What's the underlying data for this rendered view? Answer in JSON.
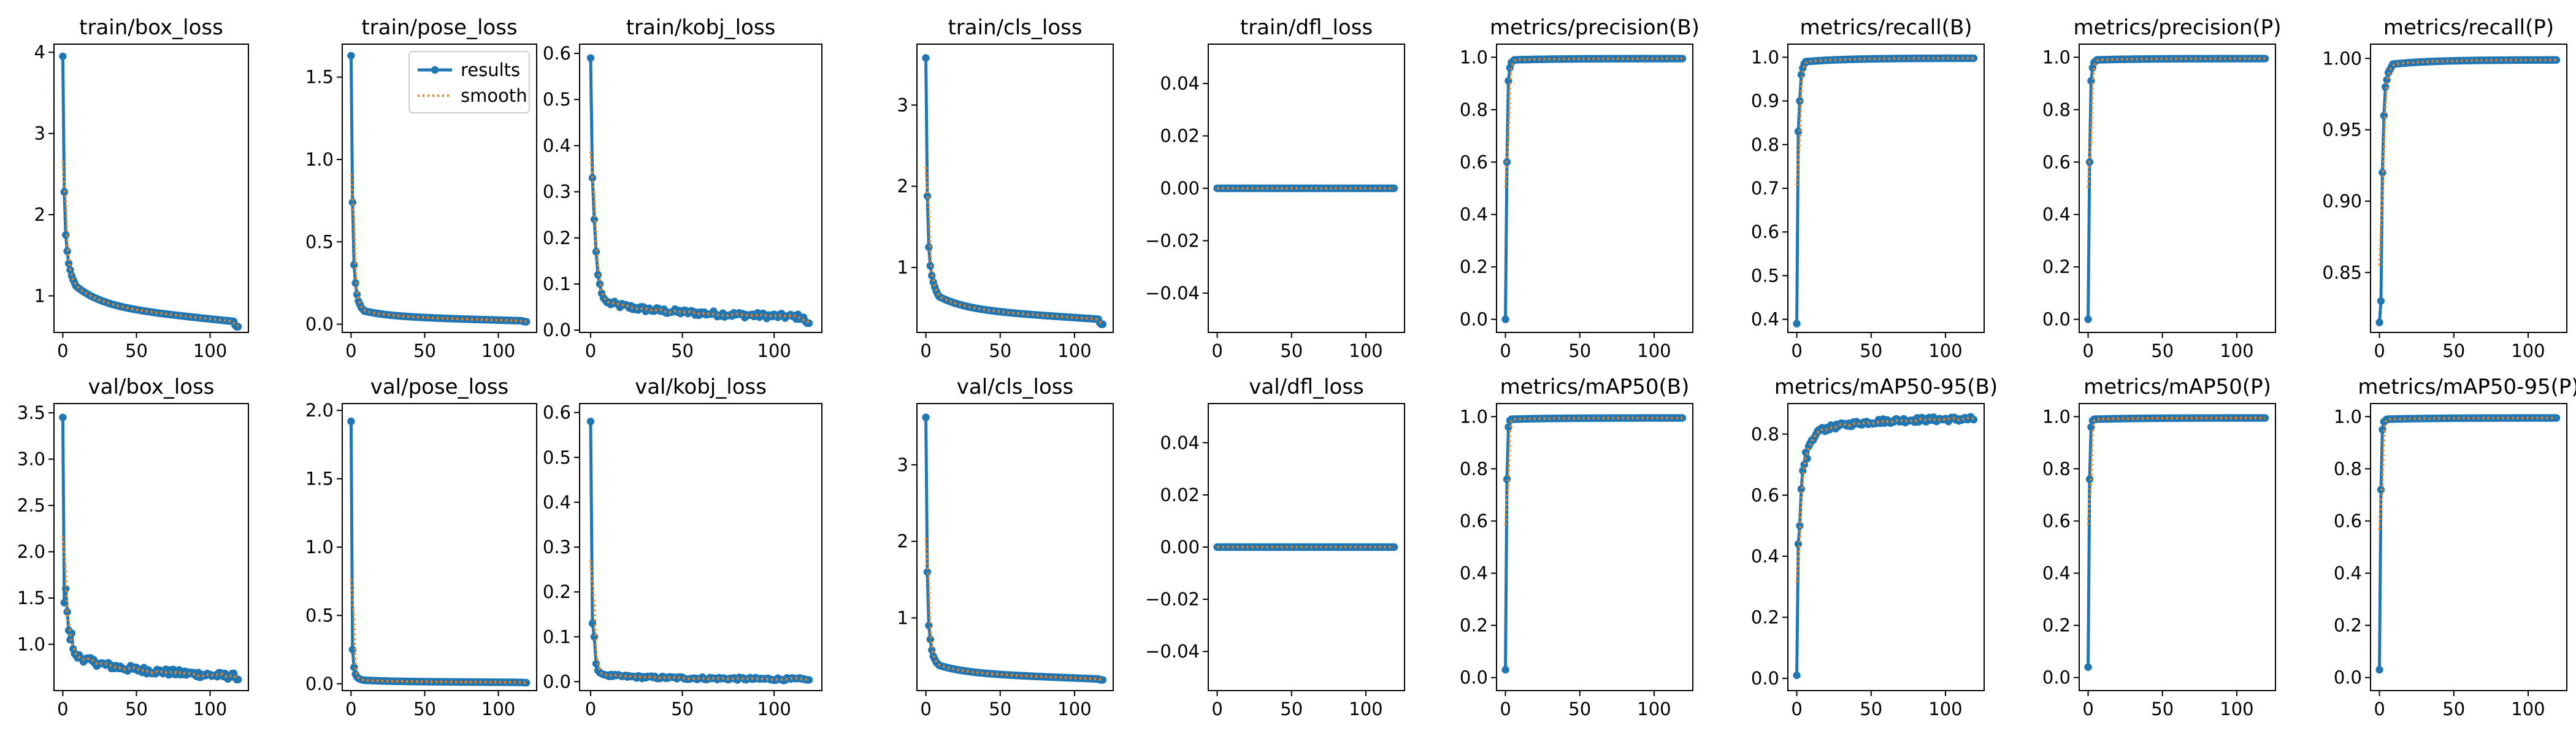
{
  "colors": {
    "results": "#1f77b4",
    "smooth": "#ff7f0e",
    "axes": "#000000",
    "background": "#ffffff"
  },
  "legend": {
    "results_label": "results",
    "smooth_label": "smooth",
    "placement": "upper-right of second panel"
  },
  "chart_data": [
    {
      "type": "line",
      "title": "train/box_loss",
      "series_type": "loss",
      "x_range": [
        0,
        120
      ],
      "ylim": [
        0.55,
        4.1
      ],
      "yticks": [
        1,
        2,
        3,
        4
      ],
      "ytick_labels": [
        "1",
        "2",
        "3",
        "4"
      ],
      "xticks": [
        0,
        50,
        100
      ],
      "xtick_labels": [
        "0",
        "50",
        "100"
      ],
      "start": 3.95,
      "early": [
        3.95,
        2.28,
        1.75,
        1.55,
        1.4,
        1.32,
        1.25,
        1.2,
        1.16,
        1.12
      ],
      "end": 0.68,
      "tail_drop": 0.62
    },
    {
      "type": "line",
      "title": "train/pose_loss",
      "series_type": "loss",
      "x_range": [
        0,
        120
      ],
      "ylim": [
        -0.05,
        1.7
      ],
      "yticks": [
        0.0,
        0.5,
        1.0,
        1.5
      ],
      "ytick_labels": [
        "0.0",
        "0.5",
        "1.0",
        "1.5"
      ],
      "xticks": [
        0,
        50,
        100
      ],
      "xtick_labels": [
        "0",
        "50",
        "100"
      ],
      "start": 1.63,
      "early": [
        1.63,
        0.74,
        0.36,
        0.25,
        0.18,
        0.14,
        0.12,
        0.1,
        0.09,
        0.08
      ],
      "end": 0.02,
      "tail_drop": 0.015,
      "legend": true
    },
    {
      "type": "line",
      "title": "train/kobj_loss",
      "series_type": "loss",
      "x_range": [
        0,
        120
      ],
      "ylim": [
        -0.005,
        0.62
      ],
      "yticks": [
        0.0,
        0.1,
        0.2,
        0.3,
        0.4,
        0.5,
        0.6
      ],
      "ytick_labels": [
        "0.0",
        "0.1",
        "0.2",
        "0.3",
        "0.4",
        "0.5",
        "0.6"
      ],
      "xticks": [
        0,
        50,
        100
      ],
      "xtick_labels": [
        "0",
        "50",
        "100"
      ],
      "start": 0.59,
      "early": [
        0.59,
        0.33,
        0.24,
        0.17,
        0.12,
        0.1,
        0.08,
        0.07,
        0.065,
        0.06
      ],
      "end": 0.028,
      "tail_drop": 0.015,
      "noise": 0.006
    },
    {
      "type": "line",
      "title": "train/cls_loss",
      "series_type": "loss",
      "x_range": [
        0,
        120
      ],
      "ylim": [
        0.2,
        3.75
      ],
      "yticks": [
        1,
        2,
        3
      ],
      "ytick_labels": [
        "1",
        "2",
        "3"
      ],
      "xticks": [
        0,
        50,
        100
      ],
      "xtick_labels": [
        "0",
        "50",
        "100"
      ],
      "start": 3.58,
      "early": [
        3.58,
        1.88,
        1.25,
        1.02,
        0.9,
        0.82,
        0.76,
        0.71,
        0.67,
        0.64
      ],
      "end": 0.36,
      "tail_drop": 0.3
    },
    {
      "type": "line",
      "title": "train/dfl_loss",
      "series_type": "flat",
      "x_range": [
        0,
        120
      ],
      "ylim": [
        -0.055,
        0.055
      ],
      "yticks": [
        -0.04,
        -0.02,
        0.0,
        0.02,
        0.04
      ],
      "ytick_labels": [
        "−0.04",
        "−0.02",
        "0.00",
        "0.02",
        "0.04"
      ],
      "xticks": [
        0,
        50,
        100
      ],
      "xtick_labels": [
        "0",
        "50",
        "100"
      ],
      "value": 0.0
    },
    {
      "type": "line",
      "title": "metrics/precision(B)",
      "series_type": "metric",
      "x_range": [
        0,
        120
      ],
      "ylim": [
        -0.05,
        1.05
      ],
      "yticks": [
        0.0,
        0.2,
        0.4,
        0.6,
        0.8,
        1.0
      ],
      "ytick_labels": [
        "0.0",
        "0.2",
        "0.4",
        "0.6",
        "0.8",
        "1.0"
      ],
      "xticks": [
        0,
        50,
        100
      ],
      "xtick_labels": [
        "0",
        "50",
        "100"
      ],
      "start": 0.0,
      "early": [
        0.0,
        0.6,
        0.91,
        0.96,
        0.98,
        0.985,
        0.99
      ],
      "end": 0.995
    },
    {
      "type": "line",
      "title": "metrics/recall(B)",
      "series_type": "metric",
      "x_range": [
        0,
        120
      ],
      "ylim": [
        0.37,
        1.03
      ],
      "yticks": [
        0.4,
        0.5,
        0.6,
        0.7,
        0.8,
        0.9,
        1.0
      ],
      "ytick_labels": [
        "0.4",
        "0.5",
        "0.6",
        "0.7",
        "0.8",
        "0.9",
        "1.0"
      ],
      "xticks": [
        0,
        50,
        100
      ],
      "xtick_labels": [
        "0",
        "50",
        "100"
      ],
      "start": 0.39,
      "early": [
        0.39,
        0.83,
        0.9,
        0.96,
        0.975,
        0.985,
        0.99
      ],
      "end": 0.998
    },
    {
      "type": "line",
      "title": "metrics/precision(P)",
      "series_type": "metric",
      "x_range": [
        0,
        120
      ],
      "ylim": [
        -0.05,
        1.05
      ],
      "yticks": [
        0.0,
        0.2,
        0.4,
        0.6,
        0.8,
        1.0
      ],
      "ytick_labels": [
        "0.0",
        "0.2",
        "0.4",
        "0.6",
        "0.8",
        "1.0"
      ],
      "xticks": [
        0,
        50,
        100
      ],
      "xtick_labels": [
        "0",
        "50",
        "100"
      ],
      "start": 0.0,
      "early": [
        0.0,
        0.6,
        0.91,
        0.96,
        0.98,
        0.985,
        0.99
      ],
      "end": 0.995
    },
    {
      "type": "line",
      "title": "metrics/recall(P)",
      "series_type": "metric",
      "x_range": [
        0,
        120
      ],
      "ylim": [
        0.808,
        1.01
      ],
      "yticks": [
        0.85,
        0.9,
        0.95,
        1.0
      ],
      "ytick_labels": [
        "0.85",
        "0.90",
        "0.95",
        "1.00"
      ],
      "xticks": [
        0,
        50,
        100
      ],
      "xtick_labels": [
        "0",
        "50",
        "100"
      ],
      "start": 0.815,
      "early": [
        0.815,
        0.83,
        0.92,
        0.96,
        0.98,
        0.985,
        0.99,
        0.992,
        0.994,
        0.996
      ],
      "end": 0.999
    },
    {
      "type": "line",
      "title": "val/box_loss",
      "series_type": "loss",
      "x_range": [
        0,
        120
      ],
      "ylim": [
        0.5,
        3.6
      ],
      "yticks": [
        1.0,
        1.5,
        2.0,
        2.5,
        3.0,
        3.5
      ],
      "ytick_labels": [
        "1.0",
        "1.5",
        "2.0",
        "2.5",
        "3.0",
        "3.5"
      ],
      "xticks": [
        0,
        50,
        100
      ],
      "xtick_labels": [
        "0",
        "50",
        "100"
      ],
      "start": 3.45,
      "early": [
        3.45,
        1.45,
        1.6,
        1.35,
        1.15,
        1.05,
        1.12,
        0.95,
        0.9,
        0.88
      ],
      "end": 0.65,
      "tail_drop": 0.62,
      "noise": 0.035
    },
    {
      "type": "line",
      "title": "val/pose_loss",
      "series_type": "loss",
      "x_range": [
        0,
        120
      ],
      "ylim": [
        -0.05,
        2.05
      ],
      "yticks": [
        0.0,
        0.5,
        1.0,
        1.5,
        2.0
      ],
      "ytick_labels": [
        "0.0",
        "0.5",
        "1.0",
        "1.5",
        "2.0"
      ],
      "xticks": [
        0,
        50,
        100
      ],
      "xtick_labels": [
        "0",
        "50",
        "100"
      ],
      "start": 1.92,
      "early": [
        1.92,
        0.25,
        0.12,
        0.07,
        0.05,
        0.04,
        0.035,
        0.03,
        0.028,
        0.026
      ],
      "end": 0.01,
      "tail_drop": 0.008
    },
    {
      "type": "line",
      "title": "val/kobj_loss",
      "series_type": "loss",
      "x_range": [
        0,
        120
      ],
      "ylim": [
        -0.02,
        0.62
      ],
      "yticks": [
        0.0,
        0.1,
        0.2,
        0.3,
        0.4,
        0.5,
        0.6
      ],
      "ytick_labels": [
        "0.0",
        "0.1",
        "0.2",
        "0.3",
        "0.4",
        "0.5",
        "0.6"
      ],
      "xticks": [
        0,
        50,
        100
      ],
      "xtick_labels": [
        "0",
        "50",
        "100"
      ],
      "start": 0.58,
      "early": [
        0.58,
        0.13,
        0.1,
        0.04,
        0.025,
        0.02,
        0.018,
        0.016,
        0.015,
        0.014
      ],
      "end": 0.005,
      "tail_drop": 0.004,
      "noise": 0.003
    },
    {
      "type": "line",
      "title": "val/cls_loss",
      "series_type": "loss",
      "x_range": [
        0,
        120
      ],
      "ylim": [
        0.05,
        3.8
      ],
      "yticks": [
        1,
        2,
        3
      ],
      "ytick_labels": [
        "1",
        "2",
        "3"
      ],
      "xticks": [
        0,
        50,
        100
      ],
      "xtick_labels": [
        "0",
        "50",
        "100"
      ],
      "start": 3.62,
      "early": [
        3.62,
        1.6,
        0.9,
        0.72,
        0.58,
        0.5,
        0.46,
        0.42,
        0.4,
        0.38
      ],
      "end": 0.2,
      "tail_drop": 0.19
    },
    {
      "type": "line",
      "title": "val/dfl_loss",
      "series_type": "flat",
      "x_range": [
        0,
        120
      ],
      "ylim": [
        -0.055,
        0.055
      ],
      "yticks": [
        -0.04,
        -0.02,
        0.0,
        0.02,
        0.04
      ],
      "ytick_labels": [
        "−0.04",
        "−0.02",
        "0.00",
        "0.02",
        "0.04"
      ],
      "xticks": [
        0,
        50,
        100
      ],
      "xtick_labels": [
        "0",
        "50",
        "100"
      ],
      "value": 0.0
    },
    {
      "type": "line",
      "title": "metrics/mAP50(B)",
      "series_type": "metric",
      "x_range": [
        0,
        120
      ],
      "ylim": [
        -0.05,
        1.05
      ],
      "yticks": [
        0.0,
        0.2,
        0.4,
        0.6,
        0.8,
        1.0
      ],
      "ytick_labels": [
        "0.0",
        "0.2",
        "0.4",
        "0.6",
        "0.8",
        "1.0"
      ],
      "xticks": [
        0,
        50,
        100
      ],
      "xtick_labels": [
        "0",
        "50",
        "100"
      ],
      "start": 0.03,
      "early": [
        0.03,
        0.76,
        0.96,
        0.985,
        0.99
      ],
      "end": 0.995
    },
    {
      "type": "line",
      "title": "metrics/mAP50-95(B)",
      "series_type": "metric",
      "x_range": [
        0,
        120
      ],
      "ylim": [
        -0.04,
        0.9
      ],
      "yticks": [
        0.0,
        0.2,
        0.4,
        0.6,
        0.8
      ],
      "ytick_labels": [
        "0.0",
        "0.2",
        "0.4",
        "0.6",
        "0.8"
      ],
      "xticks": [
        0,
        50,
        100
      ],
      "xtick_labels": [
        "0",
        "50",
        "100"
      ],
      "start": 0.01,
      "early": [
        0.01,
        0.44,
        0.5,
        0.62,
        0.68,
        0.7,
        0.74,
        0.72,
        0.76,
        0.77,
        0.78,
        0.78,
        0.79,
        0.8,
        0.81
      ],
      "end": 0.85,
      "noise": 0.008
    },
    {
      "type": "line",
      "title": "metrics/mAP50(P)",
      "series_type": "metric",
      "x_range": [
        0,
        120
      ],
      "ylim": [
        -0.05,
        1.05
      ],
      "yticks": [
        0.0,
        0.2,
        0.4,
        0.6,
        0.8,
        1.0
      ],
      "ytick_labels": [
        "0.0",
        "0.2",
        "0.4",
        "0.6",
        "0.8",
        "1.0"
      ],
      "xticks": [
        0,
        50,
        100
      ],
      "xtick_labels": [
        "0",
        "50",
        "100"
      ],
      "start": 0.04,
      "early": [
        0.04,
        0.76,
        0.96,
        0.985,
        0.99
      ],
      "end": 0.995
    },
    {
      "type": "line",
      "title": "metrics/mAP50-95(P)",
      "series_type": "metric",
      "x_range": [
        0,
        120
      ],
      "ylim": [
        -0.05,
        1.05
      ],
      "yticks": [
        0.0,
        0.2,
        0.4,
        0.6,
        0.8,
        1.0
      ],
      "ytick_labels": [
        "0.0",
        "0.2",
        "0.4",
        "0.6",
        "0.8",
        "1.0"
      ],
      "xticks": [
        0,
        50,
        100
      ],
      "xtick_labels": [
        "0",
        "50",
        "100"
      ],
      "start": 0.03,
      "early": [
        0.03,
        0.72,
        0.95,
        0.98,
        0.985,
        0.99
      ],
      "end": 0.995
    }
  ]
}
